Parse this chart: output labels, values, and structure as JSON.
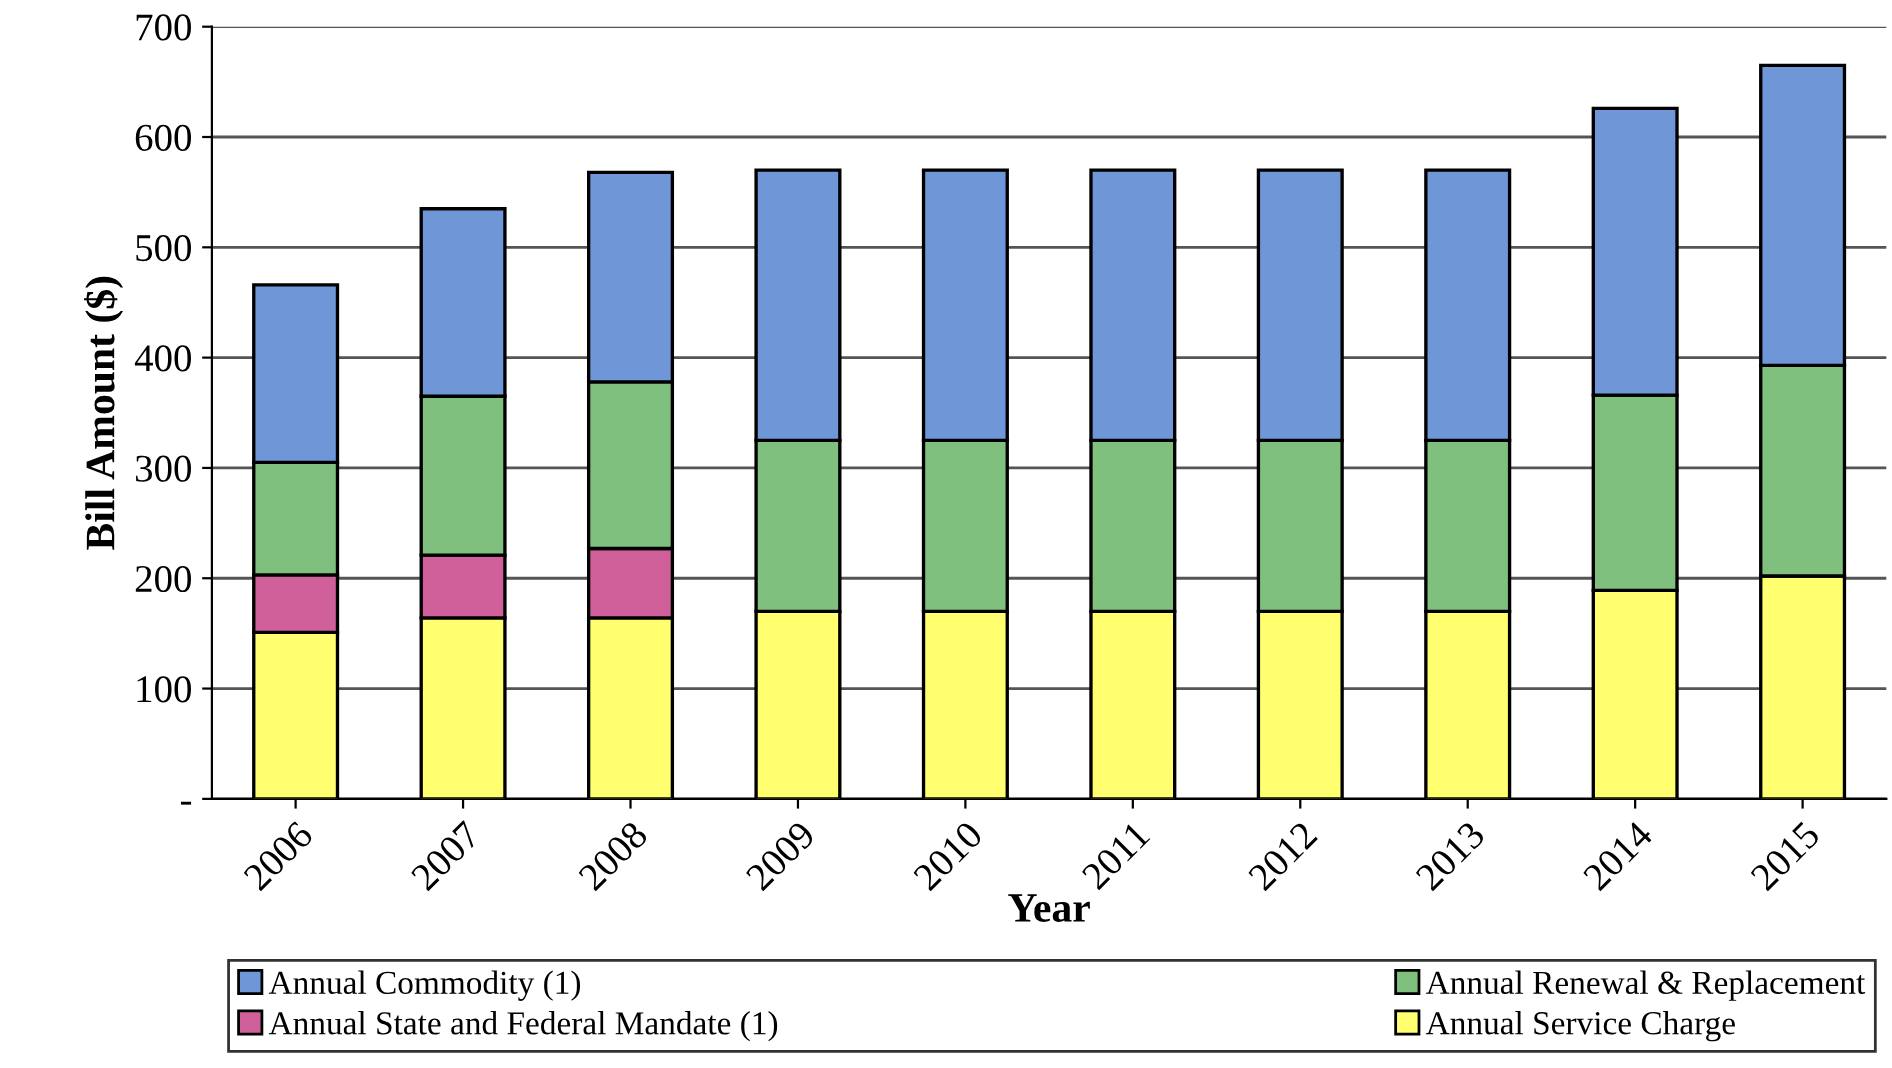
{
  "chart_data": {
    "type": "bar",
    "stacked": true,
    "xlabel": "Year",
    "ylabel": "Bill Amount ($)",
    "categories": [
      "2006",
      "2007",
      "2008",
      "2009",
      "2010",
      "2011",
      "2012",
      "2013",
      "2014",
      "2015"
    ],
    "series": [
      {
        "name": "Annual Service Charge",
        "color": "#ffff70",
        "values": [
          151,
          164,
          164,
          170,
          170,
          170,
          170,
          170,
          189,
          202
        ]
      },
      {
        "name": "Annual State and Federal Mandate (1)",
        "color": "#d0609a",
        "values": [
          52,
          57,
          63,
          null,
          null,
          null,
          null,
          null,
          null,
          null
        ]
      },
      {
        "name": "Annual Renewal & Replacement",
        "color": "#7fc07f",
        "values": [
          102,
          144,
          151,
          155,
          155,
          155,
          155,
          155,
          177,
          191
        ]
      },
      {
        "name": "Annual Commodity (1)",
        "color": "#6f96d6",
        "values": [
          161,
          170,
          190,
          245,
          245,
          245,
          245,
          245,
          260,
          272
        ]
      }
    ],
    "ylim": [
      0,
      700
    ],
    "yticks": [
      {
        "value": 0,
        "label": "-"
      },
      100,
      200,
      300,
      400,
      500,
      600,
      700
    ],
    "grid": "y",
    "legend": "bottom"
  }
}
